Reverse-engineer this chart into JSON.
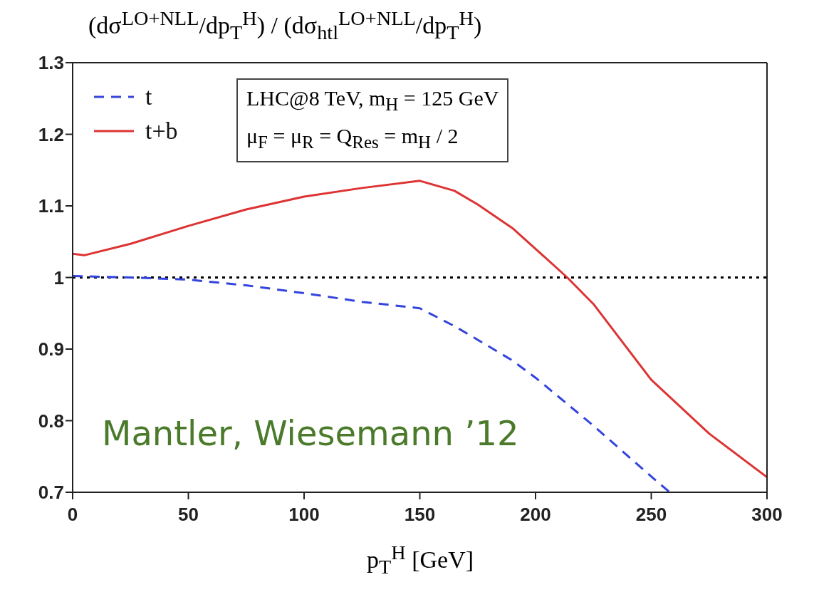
{
  "chart_data": {
    "type": "line",
    "title": "(dσ$^{LO+NLL}$/dp$_{T}$$^{H}$) / (dσ$_{htl}$$^{LO+NLL}$/dp$_{T}$$^{H}$)",
    "xlabel": "p$_{T}$$^{H}$ [GeV]",
    "xlim": [
      0,
      300
    ],
    "xticks": [
      0,
      50,
      100,
      150,
      200,
      250,
      300
    ],
    "ylim": [
      0.7,
      1.3
    ],
    "yticks": [
      0.7,
      0.8,
      0.9,
      {
        "value": 1,
        "label": "1"
      },
      1.1,
      1.2,
      1.3
    ],
    "grid": false,
    "legend": "top left",
    "marker": "none",
    "series": [
      {
        "name": "t",
        "color": "#3344dd",
        "line_style": "dashed",
        "x": [
          0,
          25,
          50,
          75,
          100,
          125,
          150,
          165,
          175,
          190,
          200,
          225,
          250,
          258
        ],
        "values": [
          1.002,
          1.0,
          0.997,
          0.989,
          0.978,
          0.966,
          0.957,
          0.932,
          0.913,
          0.884,
          0.86,
          0.793,
          0.722,
          0.7
        ]
      },
      {
        "name": "t+b",
        "color": "#dd3333",
        "line_style": "solid",
        "x": [
          0,
          5,
          25,
          50,
          75,
          100,
          125,
          150,
          165,
          175,
          190,
          200,
          213.7,
          225,
          250,
          275,
          300
        ],
        "values": [
          1.033,
          1.031,
          1.047,
          1.072,
          1.095,
          1.113,
          1.125,
          1.135,
          1.121,
          1.102,
          1.069,
          1.04,
          1.0,
          0.963,
          0.857,
          0.782,
          0.721
        ]
      }
    ],
    "ref_lines": [
      {
        "axis": "y",
        "value": 1,
        "color": "#000000",
        "line_style": "dotted"
      }
    ],
    "annotations": [
      "LHC@8 TeV, m$_{H}$ = 125 GeV",
      "μ$_{F}$ = μ$_{R}$ = Q$_{Res}$ = m$_{H}$ / 2",
      "Mantler, Wiesemann ’12"
    ]
  }
}
